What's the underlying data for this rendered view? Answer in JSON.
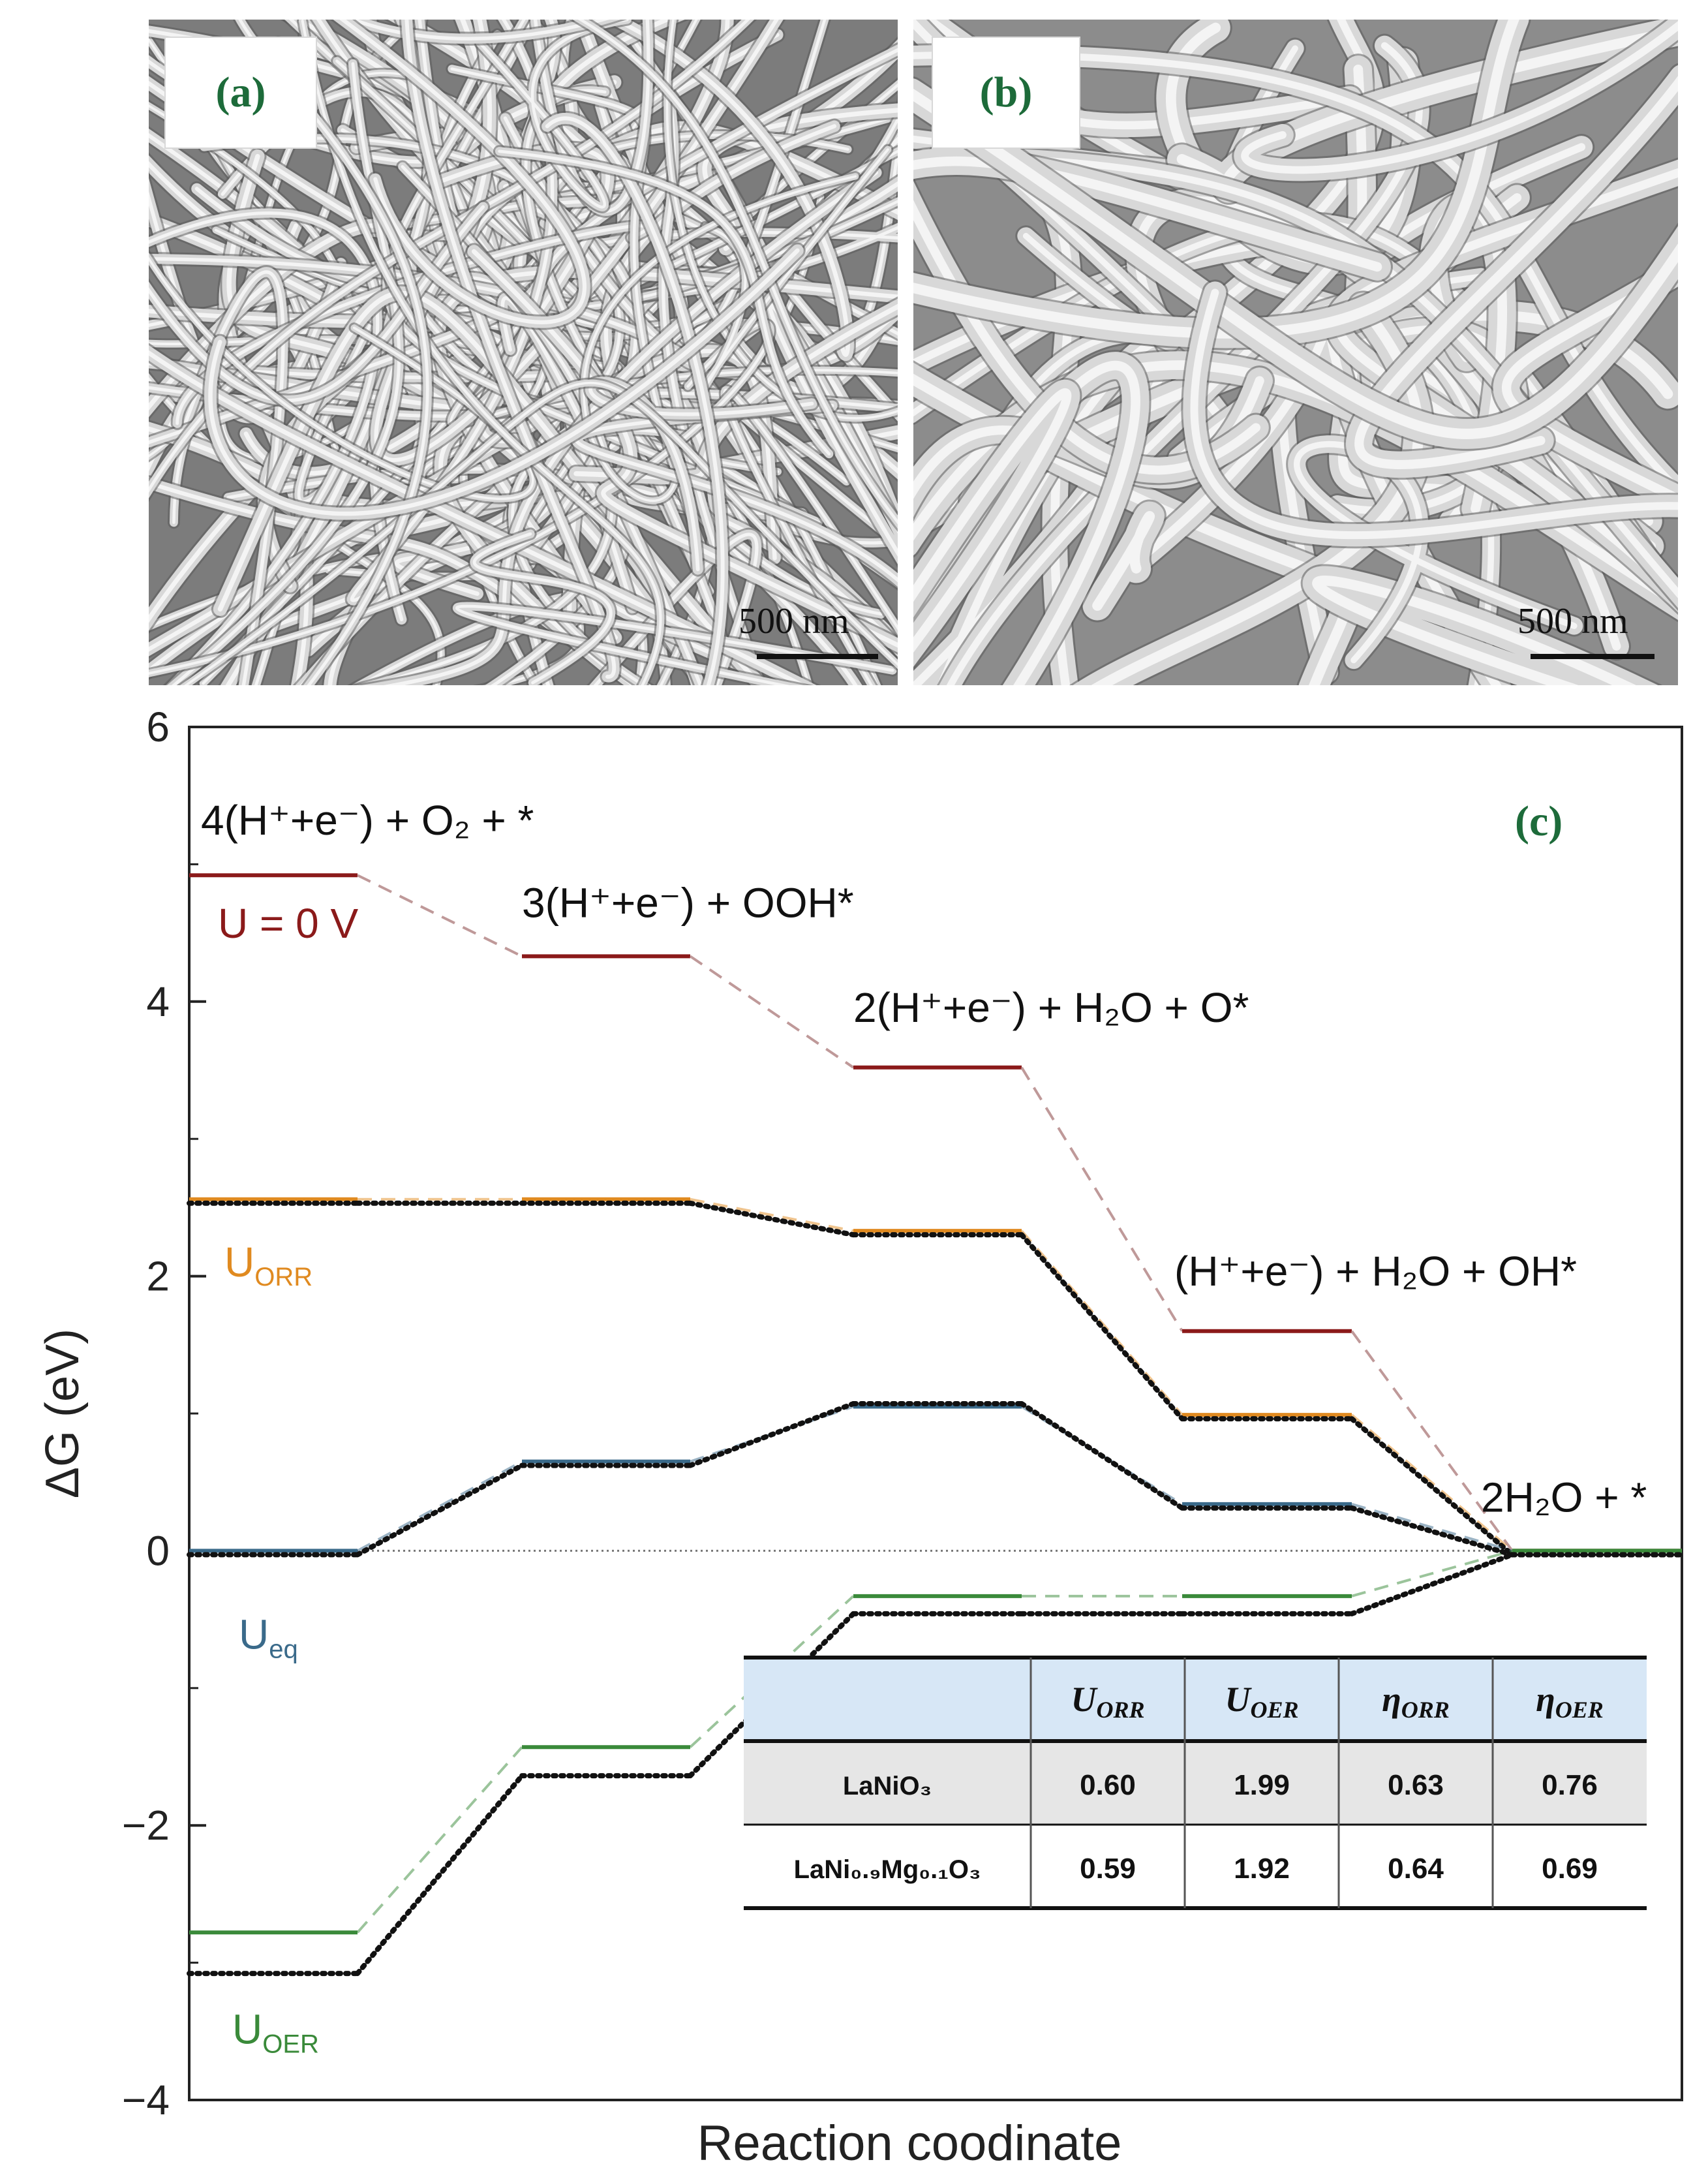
{
  "figure": {
    "panel_a": {
      "label": "(a)",
      "scale_bar": "500 nm"
    },
    "panel_b": {
      "label": "(b)",
      "scale_bar": "500 nm"
    },
    "panel_c": {
      "label": "(c)"
    }
  },
  "chart_data": {
    "type": "line",
    "xlabel": "Reaction coodinate",
    "ylabel": "ΔG (eV)",
    "ylim": [
      -4,
      6
    ],
    "yticks": [
      -4,
      -2,
      0,
      2,
      4,
      6
    ],
    "ytick_labels": [
      "−4",
      "−2",
      "0",
      "2",
      "4",
      "6"
    ],
    "steps": [
      {
        "label": "4(H⁺+e⁻) + O₂ + *"
      },
      {
        "label": "3(H⁺+e⁻) + OOH*"
      },
      {
        "label": "2(H⁺+e⁻) + H₂O + O*"
      },
      {
        "label": "(H⁺+e⁻) + H₂O + OH*"
      },
      {
        "label": "2H₂O + *"
      }
    ],
    "series": [
      {
        "name": "U = 0 V",
        "color": "#8b1a1a",
        "style": "solid-dashed",
        "values": [
          4.92,
          4.33,
          3.52,
          1.6,
          0
        ]
      },
      {
        "name": "U_ORR",
        "label_main": "U",
        "label_sub": "ORR",
        "color": "#e08a20",
        "style": "solid-dashed",
        "values": [
          2.56,
          2.56,
          2.33,
          0.99,
          0
        ]
      },
      {
        "name": "",
        "color": "#111111",
        "style": "dotted",
        "values": [
          2.56,
          2.56,
          2.33,
          0.99,
          0
        ]
      },
      {
        "name": "U_eq",
        "label_main": "U",
        "label_sub": "eq",
        "color": "#3a6a8a",
        "style": "solid-dashed",
        "values": [
          0,
          0.65,
          1.05,
          0.34,
          0
        ]
      },
      {
        "name": "",
        "color": "#111111",
        "style": "dotted",
        "values": [
          0,
          0.65,
          1.1,
          0.34,
          0
        ]
      },
      {
        "name": "U_OER",
        "label_main": "U",
        "label_sub": "OER",
        "color": "#3a8a3a",
        "style": "solid-dashed",
        "values": [
          -2.78,
          -1.43,
          -0.33,
          -0.33,
          0
        ]
      },
      {
        "name": "",
        "color": "#111111",
        "style": "dotted",
        "values": [
          -3.05,
          -1.61,
          -0.43,
          -0.43,
          0
        ]
      }
    ],
    "inset_table": {
      "headers": [
        {
          "main": "U",
          "sub": "ORR"
        },
        {
          "main": "U",
          "sub": "OER"
        },
        {
          "main": "η",
          "sub": "ORR"
        },
        {
          "main": "η",
          "sub": "OER"
        }
      ],
      "rows": [
        {
          "name": "LaNiO₃",
          "values": [
            "0.60",
            "1.99",
            "0.63",
            "0.76"
          ]
        },
        {
          "name": "LaNi₀.₉Mg₀.₁O₃",
          "values": [
            "0.59",
            "1.92",
            "0.64",
            "0.69"
          ]
        }
      ]
    }
  }
}
